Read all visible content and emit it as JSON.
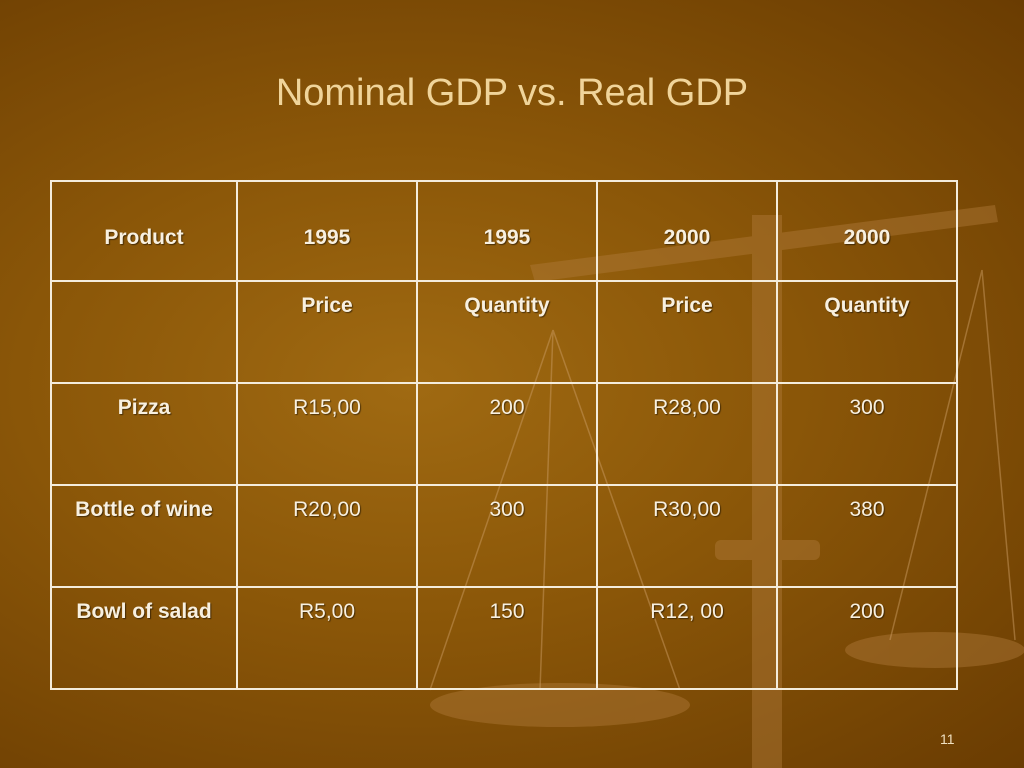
{
  "title": "Nominal GDP vs. Real GDP",
  "table": {
    "header": [
      "Product",
      "1995",
      "1995",
      "2000",
      "2000"
    ],
    "subheader": [
      "Price",
      "Quantity",
      "Price",
      "Quantity"
    ],
    "rows": [
      [
        "Pizza",
        "R15,00",
        "200",
        "R28,00",
        "300"
      ],
      [
        "Bottle of wine",
        "R20,00",
        "300",
        "R30,00",
        "380"
      ],
      [
        "Bowl of salad",
        "R5,00",
        "150",
        "R12, 00",
        "200"
      ]
    ]
  },
  "slide_number": "11"
}
